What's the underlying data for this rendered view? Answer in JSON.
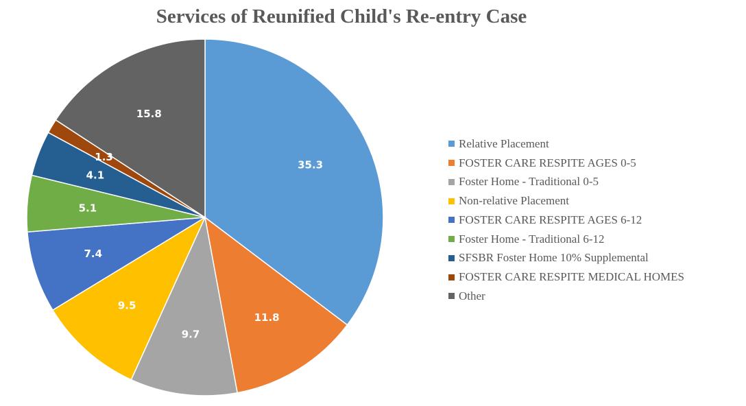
{
  "chart_data": {
    "type": "pie",
    "title": "Services of Reunified Child's Re-entry Case",
    "categories": [
      "Relative Placement",
      "FOSTER CARE RESPITE AGES 0-5",
      "Foster Home - Traditional 0-5",
      "Non-relative Placement",
      "FOSTER CARE RESPITE AGES 6-12",
      "Foster Home - Traditional 6-12",
      "SFSBR Foster Home 10% Supplemental",
      "FOSTER CARE RESPITE MEDICAL HOMES",
      "Other"
    ],
    "values": [
      35.3,
      11.8,
      9.7,
      9.5,
      7.4,
      5.1,
      4.1,
      1.3,
      15.8
    ],
    "value_labels": [
      "35.3",
      "11.8",
      "9.7",
      "9.5",
      "7.4",
      "5.1",
      "4.1",
      "1.3",
      "15.8"
    ],
    "colors": [
      "#5B9BD5",
      "#ED7D31",
      "#A5A5A5",
      "#FFC000",
      "#4472C4",
      "#70AD47",
      "#255E91",
      "#9E480E",
      "#636363"
    ],
    "start_angle": "12 o'clock",
    "direction": "clockwise",
    "legend_position": "right",
    "data_labels": "inside"
  }
}
